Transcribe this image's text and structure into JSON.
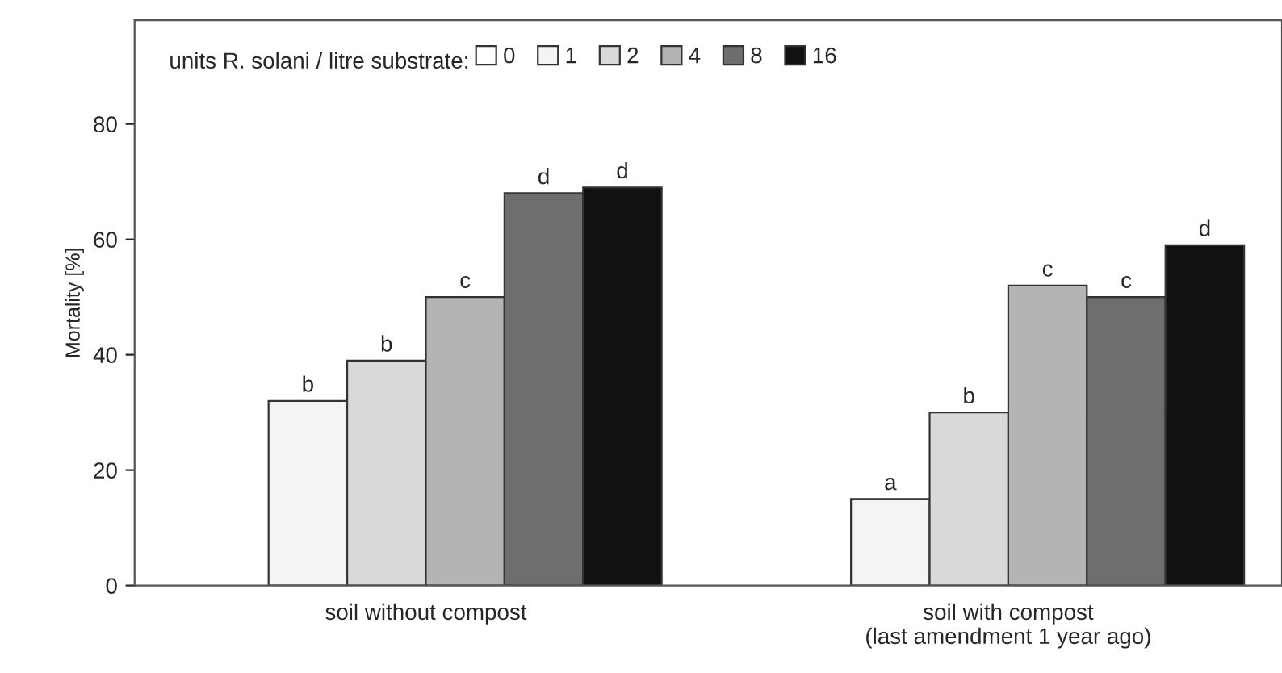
{
  "chart_data": {
    "type": "bar",
    "categories": [
      "soil without compost",
      "soil with compost\n(last amendment 1 year ago)"
    ],
    "ylabel": "Mortality [%]",
    "legend_title": "units R. solani / litre substrate:",
    "series": [
      {
        "name": "0",
        "color": "#ffffff",
        "values": [
          0,
          0
        ],
        "value_labels": [
          null,
          null
        ]
      },
      {
        "name": "1",
        "color": "#f4f4f4",
        "values": [
          32,
          15
        ],
        "value_labels": [
          "b",
          "a"
        ]
      },
      {
        "name": "2",
        "color": "#d9d9d9",
        "values": [
          39,
          30
        ],
        "value_labels": [
          "b",
          "b"
        ]
      },
      {
        "name": "4",
        "color": "#b4b4b4",
        "values": [
          50,
          52
        ],
        "value_labels": [
          "c",
          "c"
        ]
      },
      {
        "name": "8",
        "color": "#6e6e6e",
        "values": [
          68,
          50
        ],
        "value_labels": [
          "d",
          "c"
        ]
      },
      {
        "name": "16",
        "color": "#111111",
        "values": [
          69,
          59
        ],
        "value_labels": [
          "d",
          "d"
        ]
      }
    ],
    "ylim": [
      0,
      98
    ],
    "yticks": [
      0,
      20,
      40,
      60,
      80
    ],
    "grid": false,
    "legend": "top left"
  }
}
